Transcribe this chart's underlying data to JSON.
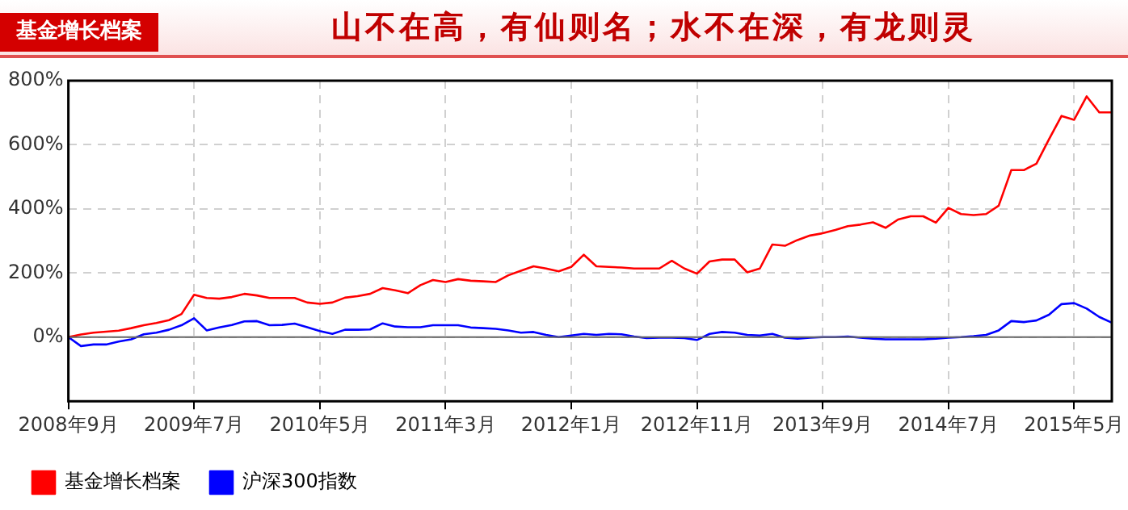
{
  "chart_data": {
    "type": "line",
    "title": "基金增长档案",
    "subtitle": "山不在高，有仙则名；水不在深，有龙则灵",
    "categories": [
      "2008年9月",
      null,
      null,
      null,
      null,
      null,
      null,
      null,
      null,
      null,
      "2009年7月",
      null,
      null,
      null,
      null,
      null,
      null,
      null,
      null,
      null,
      "2010年5月",
      null,
      null,
      null,
      null,
      null,
      null,
      null,
      null,
      null,
      "2011年3月",
      null,
      null,
      null,
      null,
      null,
      null,
      null,
      null,
      null,
      "2012年1月",
      null,
      null,
      null,
      null,
      null,
      null,
      null,
      null,
      null,
      "2012年11月",
      null,
      null,
      null,
      null,
      null,
      null,
      null,
      null,
      null,
      "2013年9月",
      null,
      null,
      null,
      null,
      null,
      null,
      null,
      null,
      null,
      "2014年7月",
      null,
      null,
      null,
      null,
      null,
      null,
      null,
      null,
      null,
      "2015年5月",
      null,
      null,
      null
    ],
    "series": [
      {
        "name": "基金增长档案",
        "color": "#ff0000",
        "values": [
          0,
          8,
          14,
          17,
          20,
          28,
          37,
          44,
          53,
          72,
          132,
          122,
          120,
          125,
          135,
          130,
          122,
          122,
          122,
          108,
          104,
          108,
          123,
          128,
          135,
          153,
          146,
          137,
          162,
          178,
          172,
          181,
          176,
          174,
          172,
          193,
          207,
          221,
          214,
          205,
          219,
          257,
          221,
          219,
          217,
          214,
          214,
          214,
          238,
          214,
          198,
          236,
          242,
          242,
          202,
          214,
          289,
          285,
          303,
          317,
          324,
          334,
          346,
          351,
          358,
          341,
          367,
          377,
          377,
          357,
          403,
          384,
          381,
          384,
          410,
          521,
          521,
          541,
          617,
          690,
          678,
          751,
          701,
          701
        ]
      },
      {
        "name": "沪深300指数",
        "color": "#0000ff",
        "values": [
          0,
          -28,
          -23,
          -23,
          -14,
          -7,
          9,
          14,
          23,
          37,
          59,
          21,
          30,
          38,
          49,
          50,
          37,
          38,
          42,
          31,
          19,
          10,
          23,
          23,
          24,
          43,
          33,
          31,
          31,
          37,
          37,
          37,
          30,
          28,
          26,
          21,
          14,
          16,
          7,
          0,
          5,
          10,
          7,
          10,
          9,
          2,
          -3,
          -2,
          -2,
          -3,
          -9,
          10,
          16,
          14,
          7,
          5,
          10,
          -2,
          -5,
          -2,
          0,
          0,
          2,
          -2,
          -5,
          -7,
          -7,
          -7,
          -7,
          -5,
          -2,
          0,
          3,
          7,
          21,
          50,
          47,
          52,
          70,
          103,
          106,
          89,
          63,
          45
        ]
      }
    ],
    "ylim": [
      -200,
      800
    ],
    "yticks": [
      {
        "value": 0,
        "label": "0%"
      },
      {
        "value": 200,
        "label": "200%"
      },
      {
        "value": 400,
        "label": "400%"
      },
      {
        "value": 600,
        "label": "600%"
      },
      {
        "value": 800,
        "label": "800%"
      }
    ],
    "ref_lines": [
      {
        "axis": "y",
        "value": 0,
        "color": "#666666"
      }
    ],
    "grid": true,
    "legend": "bottom",
    "marker": "none",
    "line_style": "solid"
  }
}
